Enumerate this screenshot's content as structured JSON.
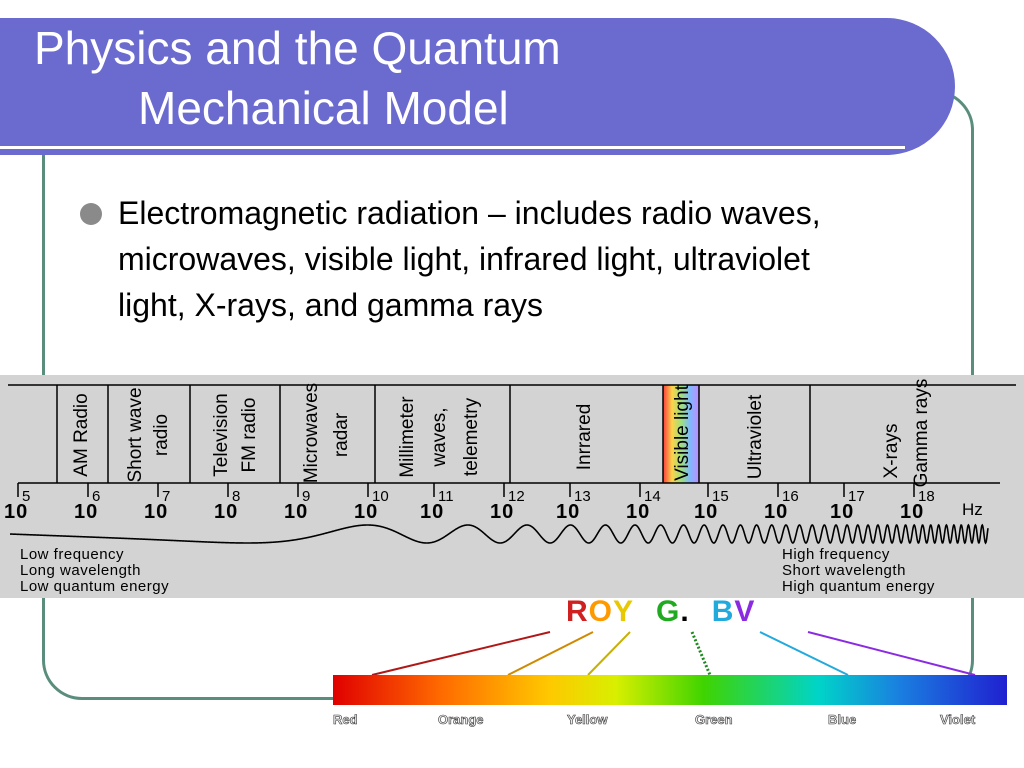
{
  "title": {
    "line1": "Physics and the Quantum",
    "line2": "Mechanical Model"
  },
  "bullet": {
    "text": "Electromagnetic radiation – includes radio waves, microwaves, visible light, infrared light, ultraviolet light, X-rays, and gamma rays"
  },
  "spectrum": {
    "bands": [
      {
        "label1": "AM Radio",
        "label2": ""
      },
      {
        "label1": "Short wave",
        "label2": "radio"
      },
      {
        "label1": "Television",
        "label2": "FM radio"
      },
      {
        "label1": "Microwaves",
        "label2": "radar"
      },
      {
        "label1": "Millimeter",
        "label2": "waves,",
        "label3": "telemetry"
      },
      {
        "label1": "Inrrared",
        "label2": ""
      },
      {
        "label1": "Visible light",
        "label2": ""
      },
      {
        "label1": "Ultraviolet",
        "label2": ""
      },
      {
        "label1": "X-rays",
        "label2": "Gamma rays"
      }
    ],
    "base": "10",
    "exponents": [
      "5",
      "6",
      "7",
      "8",
      "9",
      "10",
      "11",
      "12",
      "13",
      "14",
      "15",
      "16",
      "17",
      "18"
    ],
    "unit": "Hz",
    "low_notes": [
      "Low frequency",
      "Long wavelength",
      "Low quantum energy"
    ],
    "high_notes": [
      "High frequency",
      "Short wavelength",
      "High quantum energy"
    ]
  },
  "mnemonic": {
    "R": "R",
    "O": "O",
    "Y": "Y",
    "G": "G",
    "dot": ".",
    "B": "B",
    "V": "V",
    "colors": {
      "R": "#d02020",
      "O": "#ff9900",
      "Y": "#e8c800",
      "G": "#1faa1f",
      "B": "#22aadd",
      "V": "#8a2be2"
    }
  },
  "colors": [
    "Red",
    "Orange",
    "Yellow",
    "Green",
    "Blue",
    "Violet"
  ]
}
